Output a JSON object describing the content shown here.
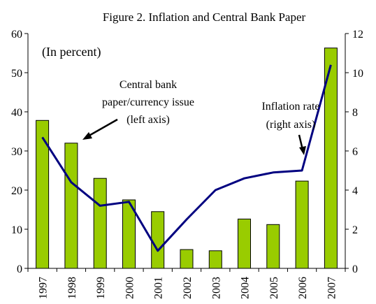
{
  "chart_data": {
    "type": "bar",
    "title": "Figure 2. Inflation and Central Bank Paper",
    "subtitle": "(In percent)",
    "categories": [
      "1997",
      "1998",
      "1999",
      "2000",
      "2001",
      "2002",
      "2003",
      "2004",
      "2005",
      "2006",
      "2007"
    ],
    "series": [
      {
        "name": "Central bank paper/currency issue (left axis)",
        "type": "bar",
        "axis": "left",
        "values": [
          37.8,
          32.0,
          23.0,
          17.5,
          14.5,
          4.8,
          4.5,
          12.6,
          11.2,
          22.3,
          56.3
        ]
      },
      {
        "name": "Inflation rate (right axis)",
        "type": "line",
        "axis": "right",
        "values": [
          6.7,
          4.4,
          3.2,
          3.4,
          0.9,
          2.5,
          4.0,
          4.6,
          4.9,
          5.0,
          10.4
        ]
      }
    ],
    "y_left": {
      "lim": [
        0,
        60
      ],
      "ticks": [
        "0",
        "10",
        "20",
        "30",
        "40",
        "50",
        "60"
      ]
    },
    "y_right": {
      "lim": [
        0,
        12
      ],
      "ticks": [
        "0",
        "2",
        "4",
        "6",
        "8",
        "10",
        "12"
      ]
    },
    "annotations": [
      {
        "lines": [
          "Central bank",
          "paper/currency issue",
          "(left axis)"
        ]
      },
      {
        "lines": [
          "Inflation rate",
          "(right axis)"
        ]
      }
    ],
    "colors": {
      "bar": "#99cc00",
      "bar_stroke": "#000000",
      "line": "#000080"
    },
    "grid": false
  }
}
